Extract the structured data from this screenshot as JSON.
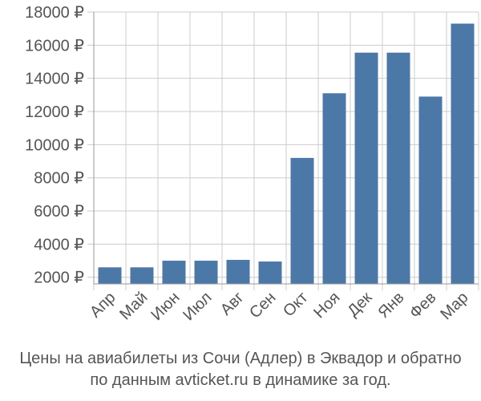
{
  "chart_data": {
    "type": "bar",
    "categories": [
      "Апр",
      "Май",
      "Июн",
      "Июл",
      "Авг",
      "Сен",
      "Окт",
      "Ноя",
      "Дек",
      "Янв",
      "Фев",
      "Мар"
    ],
    "values": [
      2600,
      2600,
      3000,
      3000,
      3050,
      2950,
      9200,
      13100,
      15550,
      15550,
      12900,
      17300
    ],
    "ylim": [
      1600,
      18000
    ],
    "yticks": [
      2000,
      4000,
      6000,
      8000,
      10000,
      12000,
      14000,
      16000,
      18000
    ],
    "ytick_labels": [
      "2000 ₽",
      "4000 ₽",
      "6000 ₽",
      "8000 ₽",
      "10000 ₽",
      "12000 ₽",
      "14000 ₽",
      "16000 ₽",
      "18000 ₽"
    ],
    "grid": true,
    "bar_color": "#4c78a8",
    "grid_color": "#cccccc",
    "text_color": "#555555"
  },
  "caption": {
    "line1": "Цены на авиабилеты из Сочи (Адлер) в Эквадор и обратно",
    "line2": "по данным avticket.ru в динамике за год."
  }
}
